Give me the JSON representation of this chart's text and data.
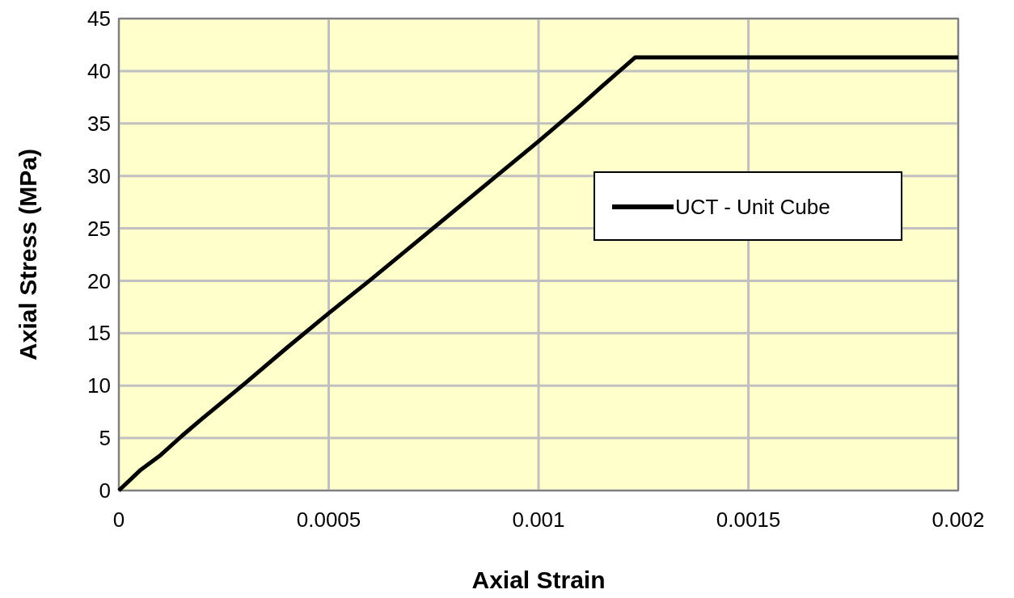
{
  "chart_data": {
    "type": "line",
    "xlabel": "Axial Strain",
    "ylabel": "Axial Stress (MPa)",
    "x": [
      0,
      5e-05,
      0.0001,
      0.00015,
      0.0002,
      0.0003,
      0.0004,
      0.0005,
      0.0006,
      0.0007,
      0.0008,
      0.0009,
      0.001,
      0.0011,
      0.00115,
      0.00123,
      0.002
    ],
    "series": [
      {
        "name": "UCT - Unit Cube",
        "color": "#000000",
        "values": [
          0,
          1.9,
          3.4,
          5.2,
          6.9,
          10.2,
          13.6,
          16.9,
          20.1,
          23.4,
          26.7,
          30,
          33.3,
          36.7,
          38.5,
          41.3,
          41.3
        ]
      }
    ],
    "xlim": [
      0,
      0.002
    ],
    "xticks": [
      0,
      0.0005,
      0.001,
      0.0015,
      0.002
    ],
    "ylim": [
      0,
      45
    ],
    "yticks": [
      0,
      5,
      10,
      15,
      20,
      25,
      30,
      35,
      40,
      45
    ],
    "grid": true,
    "legend": "right",
    "marker": "none",
    "line_style": "solid"
  }
}
